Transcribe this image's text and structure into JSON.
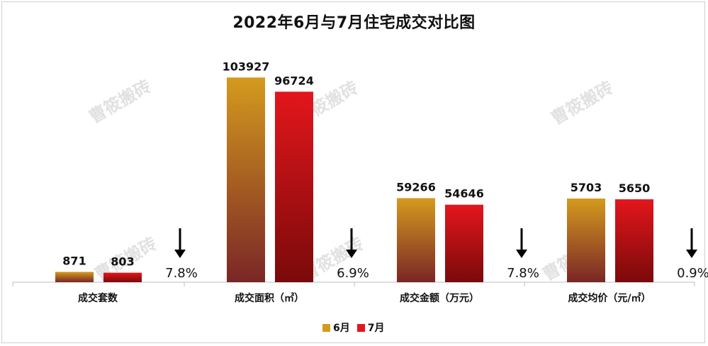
{
  "chart_data": {
    "type": "bar",
    "title": "2022年6月与7月住宅成交对比图",
    "categories": [
      "成交套数",
      "成交面积（㎡）",
      "成交金额（万元）",
      "成交均价（元/㎡）"
    ],
    "series": [
      {
        "name": "6月",
        "values": [
          871,
          103927,
          59266,
          5703
        ],
        "labels": [
          "871",
          "103927",
          "59266",
          "5703"
        ],
        "color": "#d49a1e",
        "color_bottom": "#7a2626"
      },
      {
        "name": "7月",
        "values": [
          803,
          96724,
          54646,
          5650
        ],
        "labels": [
          "803",
          "96724",
          "54646",
          "5650"
        ],
        "color": "#e3161c",
        "color_bottom": "#7a0a0a"
      }
    ],
    "changes": [
      {
        "direction": "down",
        "label": "7.8%"
      },
      {
        "direction": "down",
        "label": "6.9%"
      },
      {
        "direction": "down",
        "label": "7.8%"
      },
      {
        "direction": "down",
        "label": "0.9%"
      }
    ],
    "watermark": "曹筱搬砖",
    "legend_position": "bottom",
    "note": "each category is shown on its own scale"
  }
}
